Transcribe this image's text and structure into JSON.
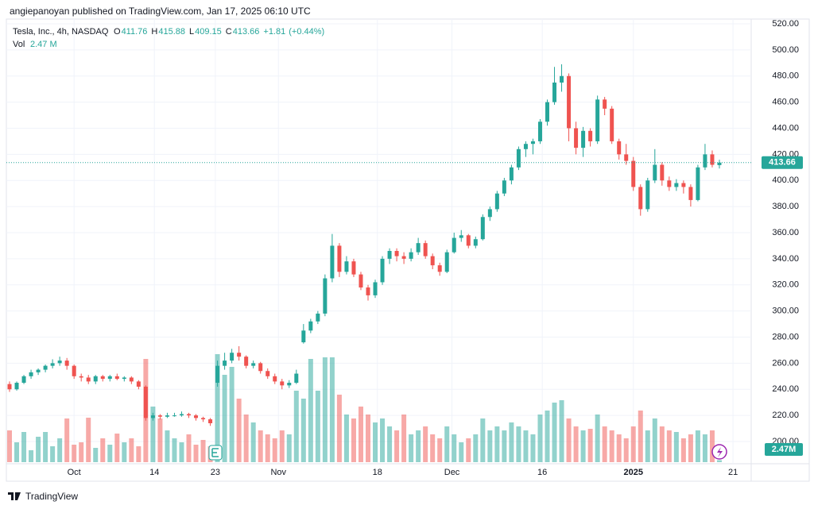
{
  "header": {
    "publisher": "angiepanoyan published on TradingView.com, Jan 17, 2025 06:10 UTC"
  },
  "footer": {
    "brand": "TradingView"
  },
  "chart_data": {
    "type": "candlestick",
    "legend": {
      "name": "Tesla, Inc., 4h, NASDAQ",
      "open": {
        "label": "O",
        "value": 411.76
      },
      "high": {
        "label": "H",
        "value": 415.88
      },
      "low": {
        "label": "L",
        "value": 409.15
      },
      "close": {
        "label": "C",
        "value": 413.66
      },
      "change": {
        "value": 1.81,
        "label": "+1.81"
      },
      "change_pct": {
        "value": 0.44,
        "label": "(+0.44%)"
      },
      "volume": {
        "label": "Vol",
        "value": 2.47,
        "value_label": "2.47 M",
        "axis_label": "2.47M"
      }
    },
    "up_color": "#26a69a",
    "down_color": "#ef5350",
    "ylim": [
      200,
      520
    ],
    "yticks": [
      {
        "value": 200,
        "label": "200.00"
      },
      {
        "value": 220,
        "label": "220.00"
      },
      {
        "value": 240,
        "label": "240.00"
      },
      {
        "value": 260,
        "label": "260.00"
      },
      {
        "value": 280,
        "label": "280.00"
      },
      {
        "value": 300,
        "label": "300.00"
      },
      {
        "value": 320,
        "label": "320.00"
      },
      {
        "value": 340,
        "label": "340.00"
      },
      {
        "value": 360,
        "label": "360.00"
      },
      {
        "value": 380,
        "label": "380.00"
      },
      {
        "value": 400,
        "label": "400.00"
      },
      {
        "value": 420,
        "label": "420.00"
      },
      {
        "value": 440,
        "label": "440.00"
      },
      {
        "value": 460,
        "label": "460.00"
      },
      {
        "value": 480,
        "label": "480.00"
      },
      {
        "value": 500,
        "label": "500.00"
      },
      {
        "value": 520,
        "label": "520.00"
      }
    ],
    "xticks": [
      {
        "value": 9,
        "label": "Oct"
      },
      {
        "value": 20.2,
        "label": "14"
      },
      {
        "value": 28.7,
        "label": "23"
      },
      {
        "value": 37.5,
        "label": "Nov"
      },
      {
        "value": 51.3,
        "label": "18"
      },
      {
        "value": 61.7,
        "label": "Dec"
      },
      {
        "value": 74.3,
        "label": "16"
      },
      {
        "value": 87,
        "label": "2025"
      },
      {
        "value": 100.9,
        "label": "21"
      }
    ],
    "grid": true,
    "ohlc": [
      [
        244,
        246,
        238,
        240
      ],
      [
        240,
        246,
        239,
        245
      ],
      [
        245,
        251,
        244,
        250
      ],
      [
        250,
        255,
        248,
        253
      ],
      [
        253,
        256,
        251,
        255
      ],
      [
        255,
        259,
        253,
        258
      ],
      [
        258,
        263,
        256,
        260
      ],
      [
        260,
        265,
        258,
        262
      ],
      [
        262,
        264,
        255,
        258
      ],
      [
        258,
        259,
        248,
        250
      ],
      [
        250,
        252,
        246,
        249
      ],
      [
        249,
        251,
        244,
        246
      ],
      [
        246,
        251,
        244,
        250
      ],
      [
        250,
        251,
        246,
        248
      ],
      [
        248,
        251,
        246,
        250
      ],
      [
        250,
        252,
        247,
        248
      ],
      [
        248,
        250,
        246,
        249
      ],
      [
        249,
        250,
        244,
        246
      ],
      [
        246,
        247,
        240,
        242
      ],
      [
        242,
        243,
        216,
        218
      ],
      [
        218,
        222,
        216,
        220
      ],
      [
        220,
        221,
        217,
        219
      ],
      [
        219,
        222,
        218,
        220
      ],
      [
        220,
        222,
        219,
        220
      ],
      [
        220,
        223,
        219,
        221
      ],
      [
        221,
        222,
        218,
        220
      ],
      [
        220,
        221,
        216,
        218
      ],
      [
        218,
        219,
        215,
        217
      ],
      [
        217,
        218,
        212,
        214
      ],
      [
        245,
        262,
        242,
        258
      ],
      [
        258,
        268,
        255,
        262
      ],
      [
        262,
        271,
        260,
        268
      ],
      [
        268,
        273,
        262,
        265
      ],
      [
        265,
        266,
        256,
        258
      ],
      [
        258,
        262,
        256,
        260
      ],
      [
        260,
        261,
        252,
        254
      ],
      [
        254,
        256,
        248,
        250
      ],
      [
        250,
        252,
        244,
        246
      ],
      [
        246,
        248,
        240,
        243
      ],
      [
        243,
        247,
        241,
        245
      ],
      [
        245,
        255,
        244,
        252
      ],
      [
        276,
        290,
        275,
        285
      ],
      [
        285,
        294,
        283,
        292
      ],
      [
        292,
        300,
        290,
        298
      ],
      [
        298,
        328,
        296,
        325
      ],
      [
        325,
        359,
        322,
        350
      ],
      [
        350,
        352,
        326,
        330
      ],
      [
        330,
        342,
        328,
        338
      ],
      [
        338,
        340,
        326,
        328
      ],
      [
        328,
        330,
        316,
        318
      ],
      [
        318,
        320,
        308,
        312
      ],
      [
        312,
        324,
        310,
        322
      ],
      [
        322,
        342,
        320,
        340
      ],
      [
        340,
        348,
        336,
        346
      ],
      [
        346,
        348,
        338,
        342
      ],
      [
        342,
        345,
        336,
        340
      ],
      [
        340,
        348,
        338,
        345
      ],
      [
        345,
        356,
        343,
        352
      ],
      [
        352,
        354,
        340,
        342
      ],
      [
        342,
        344,
        332,
        335
      ],
      [
        335,
        337,
        327,
        330
      ],
      [
        330,
        347,
        329,
        345
      ],
      [
        345,
        360,
        344,
        356
      ],
      [
        356,
        362,
        353,
        358
      ],
      [
        358,
        359,
        348,
        350
      ],
      [
        350,
        357,
        348,
        355
      ],
      [
        355,
        374,
        354,
        372
      ],
      [
        372,
        380,
        369,
        378
      ],
      [
        378,
        392,
        376,
        390
      ],
      [
        390,
        402,
        388,
        400
      ],
      [
        400,
        412,
        397,
        410
      ],
      [
        410,
        426,
        408,
        424
      ],
      [
        424,
        430,
        418,
        428
      ],
      [
        428,
        432,
        420,
        430
      ],
      [
        430,
        447,
        428,
        445
      ],
      [
        445,
        462,
        442,
        460
      ],
      [
        460,
        487,
        458,
        475
      ],
      [
        475,
        489,
        468,
        480
      ],
      [
        480,
        482,
        430,
        440
      ],
      [
        440,
        445,
        420,
        425
      ],
      [
        425,
        441,
        418,
        438
      ],
      [
        438,
        440,
        426,
        430
      ],
      [
        430,
        465,
        428,
        462
      ],
      [
        462,
        464,
        450,
        455
      ],
      [
        455,
        457,
        428,
        430
      ],
      [
        430,
        432,
        416,
        420
      ],
      [
        420,
        428,
        412,
        415
      ],
      [
        415,
        418,
        392,
        395
      ],
      [
        395,
        397,
        373,
        378
      ],
      [
        378,
        402,
        376,
        400
      ],
      [
        400,
        424,
        398,
        412
      ],
      [
        412,
        414,
        396,
        400
      ],
      [
        400,
        403,
        392,
        395
      ],
      [
        395,
        401,
        392,
        398
      ],
      [
        398,
        400,
        390,
        395
      ],
      [
        395,
        397,
        380,
        385
      ],
      [
        385,
        412,
        384,
        410
      ],
      [
        410,
        428,
        408,
        420
      ],
      [
        420,
        423,
        410,
        412
      ],
      [
        411.76,
        415.88,
        409.15,
        413.66
      ]
    ],
    "volumes": [
      40,
      25,
      38,
      15,
      32,
      38,
      20,
      30,
      55,
      22,
      25,
      56,
      18,
      30,
      22,
      36,
      25,
      30,
      20,
      130,
      70,
      55,
      40,
      30,
      25,
      35,
      22,
      28,
      20,
      136,
      110,
      120,
      80,
      60,
      50,
      40,
      35,
      30,
      40,
      35,
      90,
      80,
      130,
      90,
      132,
      132,
      85,
      60,
      55,
      70,
      60,
      50,
      55,
      45,
      40,
      60,
      35,
      40,
      45,
      35,
      30,
      45,
      35,
      25,
      30,
      35,
      55,
      40,
      45,
      40,
      50,
      45,
      40,
      35,
      60,
      65,
      75,
      78,
      55,
      45,
      40,
      42,
      60,
      45,
      40,
      35,
      30,
      45,
      65,
      40,
      55,
      45,
      40,
      38,
      30,
      35,
      40,
      35,
      40,
      2.47
    ]
  }
}
